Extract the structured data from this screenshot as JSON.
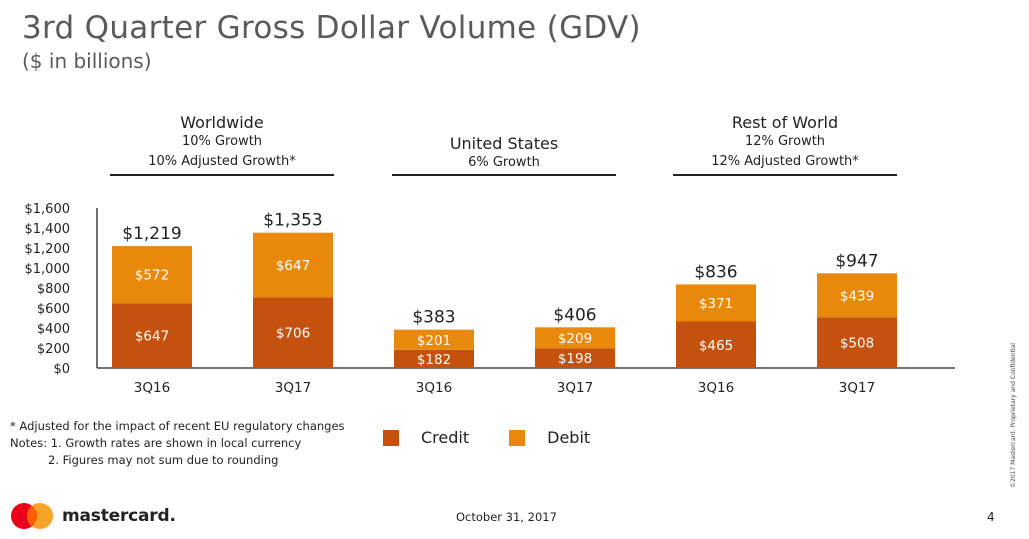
{
  "title": "3rd Quarter Gross Dollar Volume (GDV)",
  "subtitle": "($ in billions)",
  "groups": [
    {
      "name": "Worldwide",
      "line1": "10% Growth",
      "line2": "10% Adjusted Growth*"
    },
    {
      "name": "United States",
      "line1": "6% Growth",
      "line2": ""
    },
    {
      "name": "Rest of World",
      "line1": "12% Growth",
      "line2": "12% Adjusted Growth*"
    }
  ],
  "chart_data": {
    "type": "bar",
    "stacked": true,
    "categories": [
      "3Q16",
      "3Q17",
      "3Q16",
      "3Q17",
      "3Q16",
      "3Q17"
    ],
    "series": [
      {
        "name": "Credit",
        "values": [
          647,
          706,
          182,
          198,
          465,
          508
        ],
        "labels": [
          "$647",
          "$706",
          "$182",
          "$198",
          "$465",
          "$508"
        ]
      },
      {
        "name": "Debit",
        "values": [
          572,
          647,
          201,
          209,
          371,
          439
        ],
        "labels": [
          "$572",
          "$647",
          "$201",
          "$209",
          "$371",
          "$439"
        ]
      }
    ],
    "totals": [
      1219,
      1353,
      383,
      406,
      836,
      947
    ],
    "total_labels": [
      "$1,219",
      "$1,353",
      "$383",
      "$406",
      "$836",
      "$947"
    ],
    "ylim": [
      0,
      1600
    ],
    "yticks": [
      0,
      200,
      400,
      600,
      800,
      1000,
      1200,
      1400,
      1600
    ],
    "ytick_labels": [
      "$0",
      "$200",
      "$400",
      "$600",
      "$800",
      "$1,000",
      "$1,200",
      "$1,400",
      "$1,600"
    ],
    "grid": false,
    "legend_position": "bottom"
  },
  "colors": {
    "credit": "#c4510e",
    "debit": "#e8890c"
  },
  "legend": {
    "credit": "Credit",
    "debit": "Debit"
  },
  "footnotes": {
    "line1": "* Adjusted for the impact of recent EU regulatory changes",
    "line2": "Notes: 1.  Growth rates are shown in local currency",
    "line3": "2.  Figures may not sum due to rounding"
  },
  "footer": {
    "date": "October 31, 2017",
    "page": "4",
    "brand": "mastercard.",
    "side_note": "©2017 Mastercard. Proprietary and Confidential"
  }
}
